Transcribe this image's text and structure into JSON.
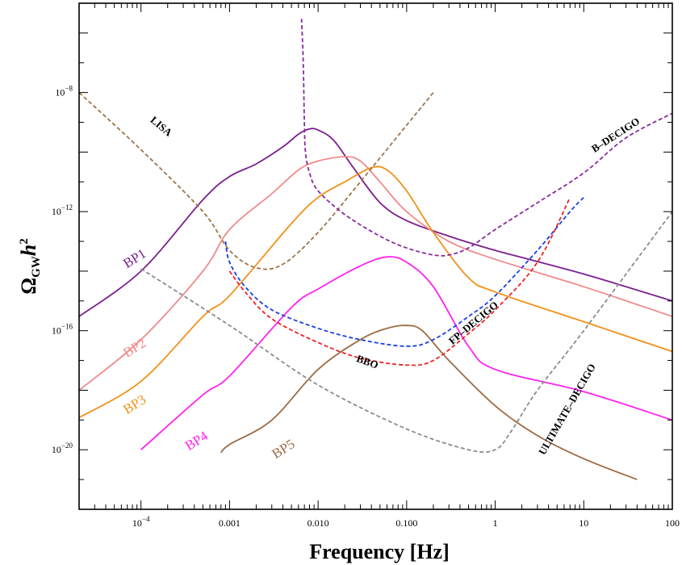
{
  "chart_data": {
    "type": "line",
    "xlabel": "Frequency [Hz]",
    "ylabel_main": "Ω",
    "ylabel_sub": "GW",
    "ylabel_h": "h",
    "ylabel_sup": "2",
    "x_scale": "log",
    "y_scale": "log",
    "xlim": [
      2e-05,
      100
    ],
    "ylim": [
      1e-22,
      1e-05
    ],
    "x_ticks": [
      {
        "value": 0.0001,
        "base": "10",
        "exp": "−4"
      },
      {
        "value": 0.001,
        "label": "0.001"
      },
      {
        "value": 0.01,
        "label": "0.010"
      },
      {
        "value": 0.1,
        "label": "0.100"
      },
      {
        "value": 1,
        "label": "1"
      },
      {
        "value": 10,
        "label": "10"
      },
      {
        "value": 100,
        "label": "100"
      }
    ],
    "y_ticks": [
      {
        "value": 1e-08,
        "base": "10",
        "exp": "−8"
      },
      {
        "value": 1e-12,
        "base": "10",
        "exp": "−12"
      },
      {
        "value": 1e-16,
        "base": "10",
        "exp": "−16"
      },
      {
        "value": 1e-20,
        "base": "10",
        "exp": "−20"
      }
    ],
    "series": [
      {
        "name": "BP1",
        "color": "#7b1f8f",
        "dash": false,
        "x": [
          2e-05,
          0.0001,
          0.0005,
          0.001,
          0.002,
          0.004,
          0.006,
          0.008,
          0.01,
          0.015,
          0.025,
          0.05,
          0.1,
          0.3,
          1,
          10,
          100
        ],
        "y": [
          3e-16,
          1e-14,
          2.5e-12,
          1.5e-11,
          4e-11,
          1.5e-10,
          4e-10,
          6e-10,
          5.5e-10,
          2.5e-10,
          3e-11,
          2e-12,
          5e-13,
          1.5e-13,
          5e-14,
          8e-15,
          1e-15
        ]
      },
      {
        "name": "BP2",
        "color": "#f08a8a",
        "dash": false,
        "x": [
          2e-05,
          0.0001,
          0.0005,
          0.001,
          0.003,
          0.006,
          0.01,
          0.02,
          0.03,
          0.05,
          0.1,
          0.3,
          1,
          10,
          100
        ],
        "y": [
          1e-18,
          5e-17,
          1e-14,
          2.5e-13,
          4e-12,
          2.5e-11,
          5e-11,
          7e-11,
          5e-11,
          1e-11,
          1e-12,
          1e-13,
          2.5e-14,
          3e-15,
          3e-16
        ]
      },
      {
        "name": "BP3",
        "color": "#f39019",
        "dash": false,
        "x": [
          2e-05,
          0.0001,
          0.0005,
          0.001,
          0.005,
          0.01,
          0.02,
          0.04,
          0.06,
          0.1,
          0.2,
          0.5,
          1,
          10,
          100
        ],
        "y": [
          1.2e-19,
          2e-18,
          3e-16,
          1.5e-15,
          4e-13,
          3e-12,
          1e-11,
          3e-11,
          2.5e-11,
          5e-12,
          2e-13,
          6e-15,
          2e-15,
          2e-16,
          2e-17
        ]
      },
      {
        "name": "BP4",
        "color": "#ff22ee",
        "dash": false,
        "x": [
          0.0001,
          0.0005,
          0.001,
          0.005,
          0.01,
          0.03,
          0.06,
          0.1,
          0.2,
          0.5,
          1,
          10,
          100
        ],
        "y": [
          1e-20,
          7e-19,
          3e-18,
          6e-16,
          2.5e-15,
          1.5e-14,
          3e-14,
          2e-14,
          3e-15,
          3e-17,
          5e-18,
          9e-19,
          1e-19
        ]
      },
      {
        "name": "BP5",
        "color": "#9c6b43",
        "dash": false,
        "x": [
          0.0008,
          0.001,
          0.003,
          0.01,
          0.03,
          0.06,
          0.1,
          0.15,
          0.3,
          1,
          3,
          10,
          40
        ],
        "y": [
          8e-21,
          1.5e-20,
          1e-19,
          5e-18,
          5e-17,
          1.2e-16,
          1.5e-16,
          1e-16,
          1e-17,
          3e-19,
          3e-20,
          5e-21,
          1e-21
        ]
      },
      {
        "name": "LISA",
        "color": "#a0734a",
        "dash": true,
        "x": [
          2e-05,
          0.0001,
          0.0005,
          0.001,
          0.002,
          0.004,
          0.01,
          0.03,
          0.1,
          0.2
        ],
        "y": [
          1e-08,
          1.2e-10,
          1e-12,
          5e-14,
          1.3e-14,
          1.7e-14,
          2e-13,
          1e-11,
          8e-10,
          1e-08
        ]
      },
      {
        "name": "B–DECIGO",
        "color": "#8a2aa0",
        "dash": true,
        "x": [
          0.0065,
          0.0068,
          0.007,
          0.0072,
          0.008,
          0.01,
          0.02,
          0.05,
          0.1,
          0.2,
          0.3,
          0.5,
          1,
          3,
          10,
          30,
          100
        ],
        "y": [
          3e-06,
          1e-07,
          1e-09,
          1e-10,
          2e-11,
          5e-12,
          8e-13,
          1.5e-13,
          6e-14,
          3.5e-14,
          3.5e-14,
          6e-14,
          2.5e-13,
          2e-12,
          2e-11,
          3e-10,
          2e-09
        ]
      },
      {
        "name": "FP–DECIGO",
        "color": "#1a3fe6",
        "dash": true,
        "x": [
          0.0009,
          0.001,
          0.0015,
          0.003,
          0.01,
          0.03,
          0.1,
          0.2,
          0.5,
          1,
          3,
          7,
          10
        ],
        "y": [
          1e-13,
          2e-14,
          3e-15,
          5e-16,
          1.2e-16,
          5e-17,
          3e-17,
          5e-17,
          3e-16,
          1.5e-15,
          5e-14,
          1e-12,
          3e-12
        ]
      },
      {
        "name": "BBO",
        "color": "#ee2222",
        "dash": true,
        "x": [
          0.001,
          0.0015,
          0.003,
          0.01,
          0.03,
          0.1,
          0.2,
          0.5,
          1,
          3,
          7
        ],
        "y": [
          1e-14,
          2e-15,
          2.5e-16,
          4e-17,
          1.2e-17,
          7e-18,
          1e-17,
          8e-17,
          5e-16,
          2e-14,
          3e-12
        ]
      },
      {
        "name": "ULTIMATE–DECIGO",
        "color": "#8c8c8c",
        "dash": true,
        "x": [
          0.0001,
          0.001,
          0.01,
          0.1,
          0.5,
          1,
          1.5,
          3,
          10,
          100
        ],
        "y": [
          1.2e-14,
          1.5e-16,
          1.5e-18,
          5e-20,
          1e-20,
          1e-20,
          4e-20,
          1e-18,
          1e-16,
          1e-12
        ]
      }
    ]
  }
}
